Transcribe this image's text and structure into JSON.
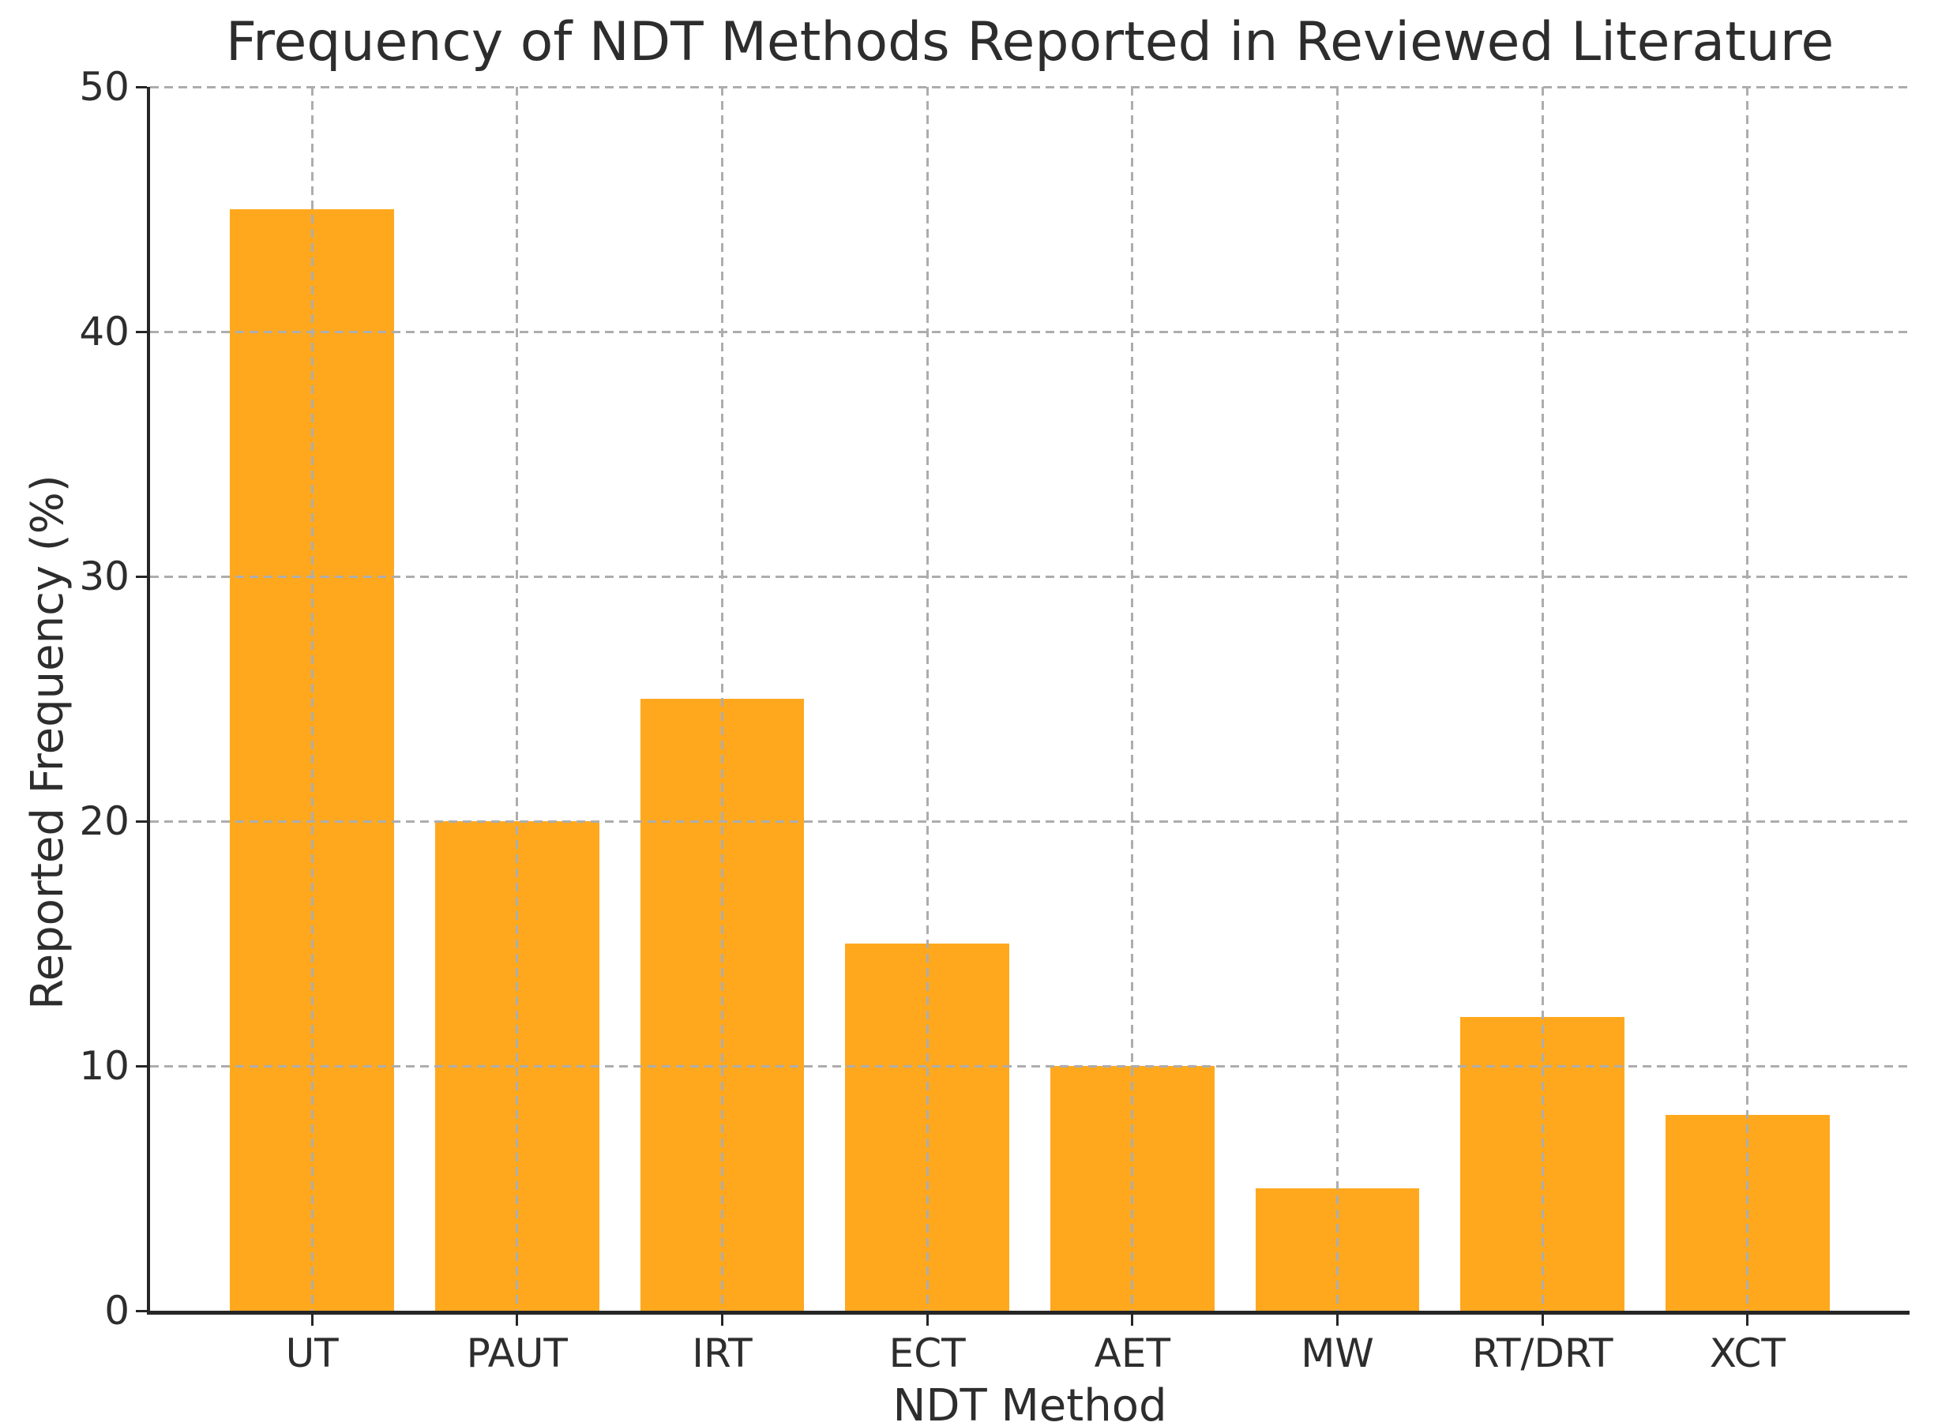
{
  "chart_data": {
    "type": "bar",
    "title": "Frequency of NDT Methods Reported in Reviewed Literature",
    "xlabel": "NDT Method",
    "ylabel": "Reported Frequency (%)",
    "categories": [
      "UT",
      "PAUT",
      "IRT",
      "ECT",
      "AET",
      "MW",
      "RT/DRT",
      "XCT"
    ],
    "values": [
      45,
      20,
      25,
      15,
      10,
      5,
      12,
      8
    ],
    "ylim": [
      0,
      50
    ],
    "yticks": [
      0,
      10,
      20,
      30,
      40,
      50
    ],
    "bar_width_fraction": 0.8,
    "grid": {
      "visible": true,
      "style": "dashed",
      "axes": "both",
      "above_bars": true
    },
    "legend": "none",
    "spines": [
      "left",
      "bottom"
    ],
    "colors": {
      "bar": "#FFA81E",
      "grid": "#ADADAD",
      "spine": "#262626",
      "text": "#2D2D2D",
      "background": "#FFFFFF"
    }
  }
}
